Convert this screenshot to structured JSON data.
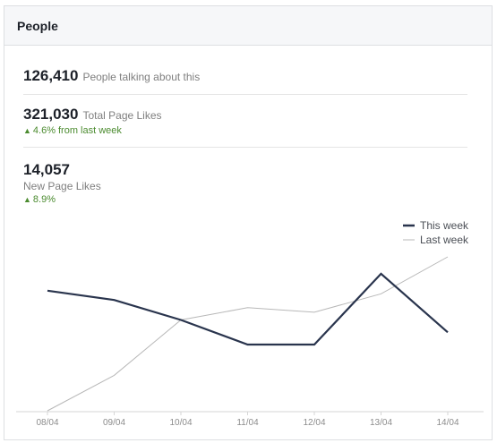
{
  "header": {
    "title": "People"
  },
  "stats": {
    "talking": {
      "value": "126,410",
      "label": "People talking about this"
    },
    "total_likes": {
      "value": "321,030",
      "label": "Total Page Likes",
      "change": "4.6%",
      "change_suffix": "from last week"
    },
    "new_likes": {
      "value": "14,057",
      "label": "New Page Likes",
      "change": "8.9%"
    }
  },
  "colors": {
    "this_week": "#29344d",
    "last_week": "#b8b8b8",
    "positive": "#4b8b2f"
  },
  "chart_data": {
    "type": "line",
    "categories": [
      "08/04",
      "09/04",
      "10/04",
      "11/04",
      "12/04",
      "13/04",
      "14/04"
    ],
    "series": [
      {
        "name": "This week",
        "values": [
          0.78,
          0.72,
          0.59,
          0.43,
          0.43,
          0.89,
          0.51
        ]
      },
      {
        "name": "Last week",
        "values": [
          0.0,
          0.23,
          0.59,
          0.67,
          0.64,
          0.76,
          1.0
        ]
      }
    ],
    "legend": "top-right"
  }
}
